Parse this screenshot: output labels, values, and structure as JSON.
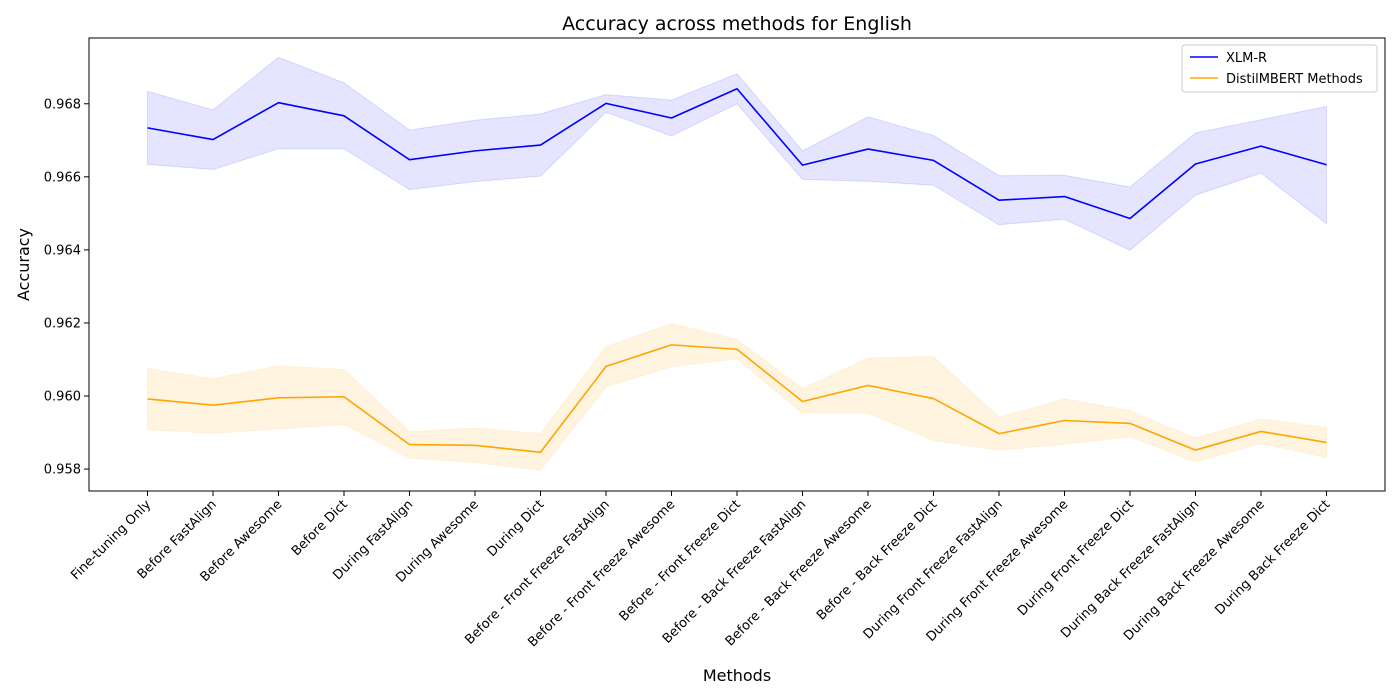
{
  "chart_data": {
    "type": "line",
    "title": "Accuracy across methods for English",
    "xlabel": "Methods",
    "ylabel": "Accuracy",
    "ylim": [
      0.9574,
      0.9698
    ],
    "yticks": [
      0.958,
      0.96,
      0.962,
      0.964,
      0.966,
      0.968
    ],
    "ytick_labels": [
      "0.958",
      "0.960",
      "0.962",
      "0.964",
      "0.966",
      "0.968"
    ],
    "grid": false,
    "legend_position": "top-right",
    "categories": [
      "Fine-tuning Only",
      "Before FastAlign",
      "Before Awesome",
      "Before Dict",
      "During FastAlign",
      "During Awesome",
      "During Dict",
      "Before - Front Freeze FastAlign",
      "Before - Front Freeze Awesome",
      "Before - Front Freeze Dict",
      "Before - Back Freeze FastAlign",
      "Before - Back Freeze Awesome",
      "Before - Back Freeze Dict",
      "During Front Freeze FastAlign",
      "During Front Freeze Awesome",
      "During Front Freeze Dict",
      "During Back Freeze FastAlign",
      "During Back Freeze Awesome",
      "During Back Freeze Dict"
    ],
    "series": [
      {
        "name": "XLM-R",
        "color": "#0000ff",
        "band_color": "#0000ff",
        "values": [
          0.96734,
          0.96702,
          0.96803,
          0.96767,
          0.96647,
          0.96671,
          0.96687,
          0.96801,
          0.96761,
          0.96841,
          0.96632,
          0.96676,
          0.96645,
          0.96536,
          0.96546,
          0.96486,
          0.96635,
          0.96684,
          0.96633
        ],
        "upper": [
          0.96834,
          0.96783,
          0.96927,
          0.96857,
          0.96728,
          0.96755,
          0.96772,
          0.96825,
          0.9681,
          0.96882,
          0.96671,
          0.96764,
          0.96713,
          0.96603,
          0.96604,
          0.96572,
          0.9672,
          0.96756,
          0.96793
        ],
        "lower": [
          0.96634,
          0.9662,
          0.96677,
          0.96677,
          0.96565,
          0.96587,
          0.96602,
          0.96777,
          0.96712,
          0.968,
          0.96593,
          0.96588,
          0.96577,
          0.96469,
          0.96484,
          0.96399,
          0.9655,
          0.9661,
          0.96472
        ]
      },
      {
        "name": "DistilMBERT Methods",
        "color": "#ffa500",
        "band_color": "#ffa500",
        "values": [
          0.95992,
          0.95975,
          0.95995,
          0.95998,
          0.95867,
          0.95865,
          0.95846,
          0.96081,
          0.9614,
          0.96128,
          0.95985,
          0.96029,
          0.95993,
          0.95897,
          0.95933,
          0.95925,
          0.95852,
          0.95903,
          0.95873
        ],
        "upper": [
          0.96075,
          0.96048,
          0.96082,
          0.96073,
          0.95903,
          0.95912,
          0.95897,
          0.96135,
          0.96198,
          0.96155,
          0.9602,
          0.96104,
          0.96108,
          0.95942,
          0.95992,
          0.9596,
          0.95885,
          0.95937,
          0.95914
        ],
        "lower": [
          0.95908,
          0.95898,
          0.9591,
          0.95922,
          0.9583,
          0.95818,
          0.95797,
          0.96025,
          0.9608,
          0.96102,
          0.95953,
          0.95953,
          0.95878,
          0.95852,
          0.95868,
          0.95888,
          0.9582,
          0.9587,
          0.95832
        ]
      }
    ]
  }
}
